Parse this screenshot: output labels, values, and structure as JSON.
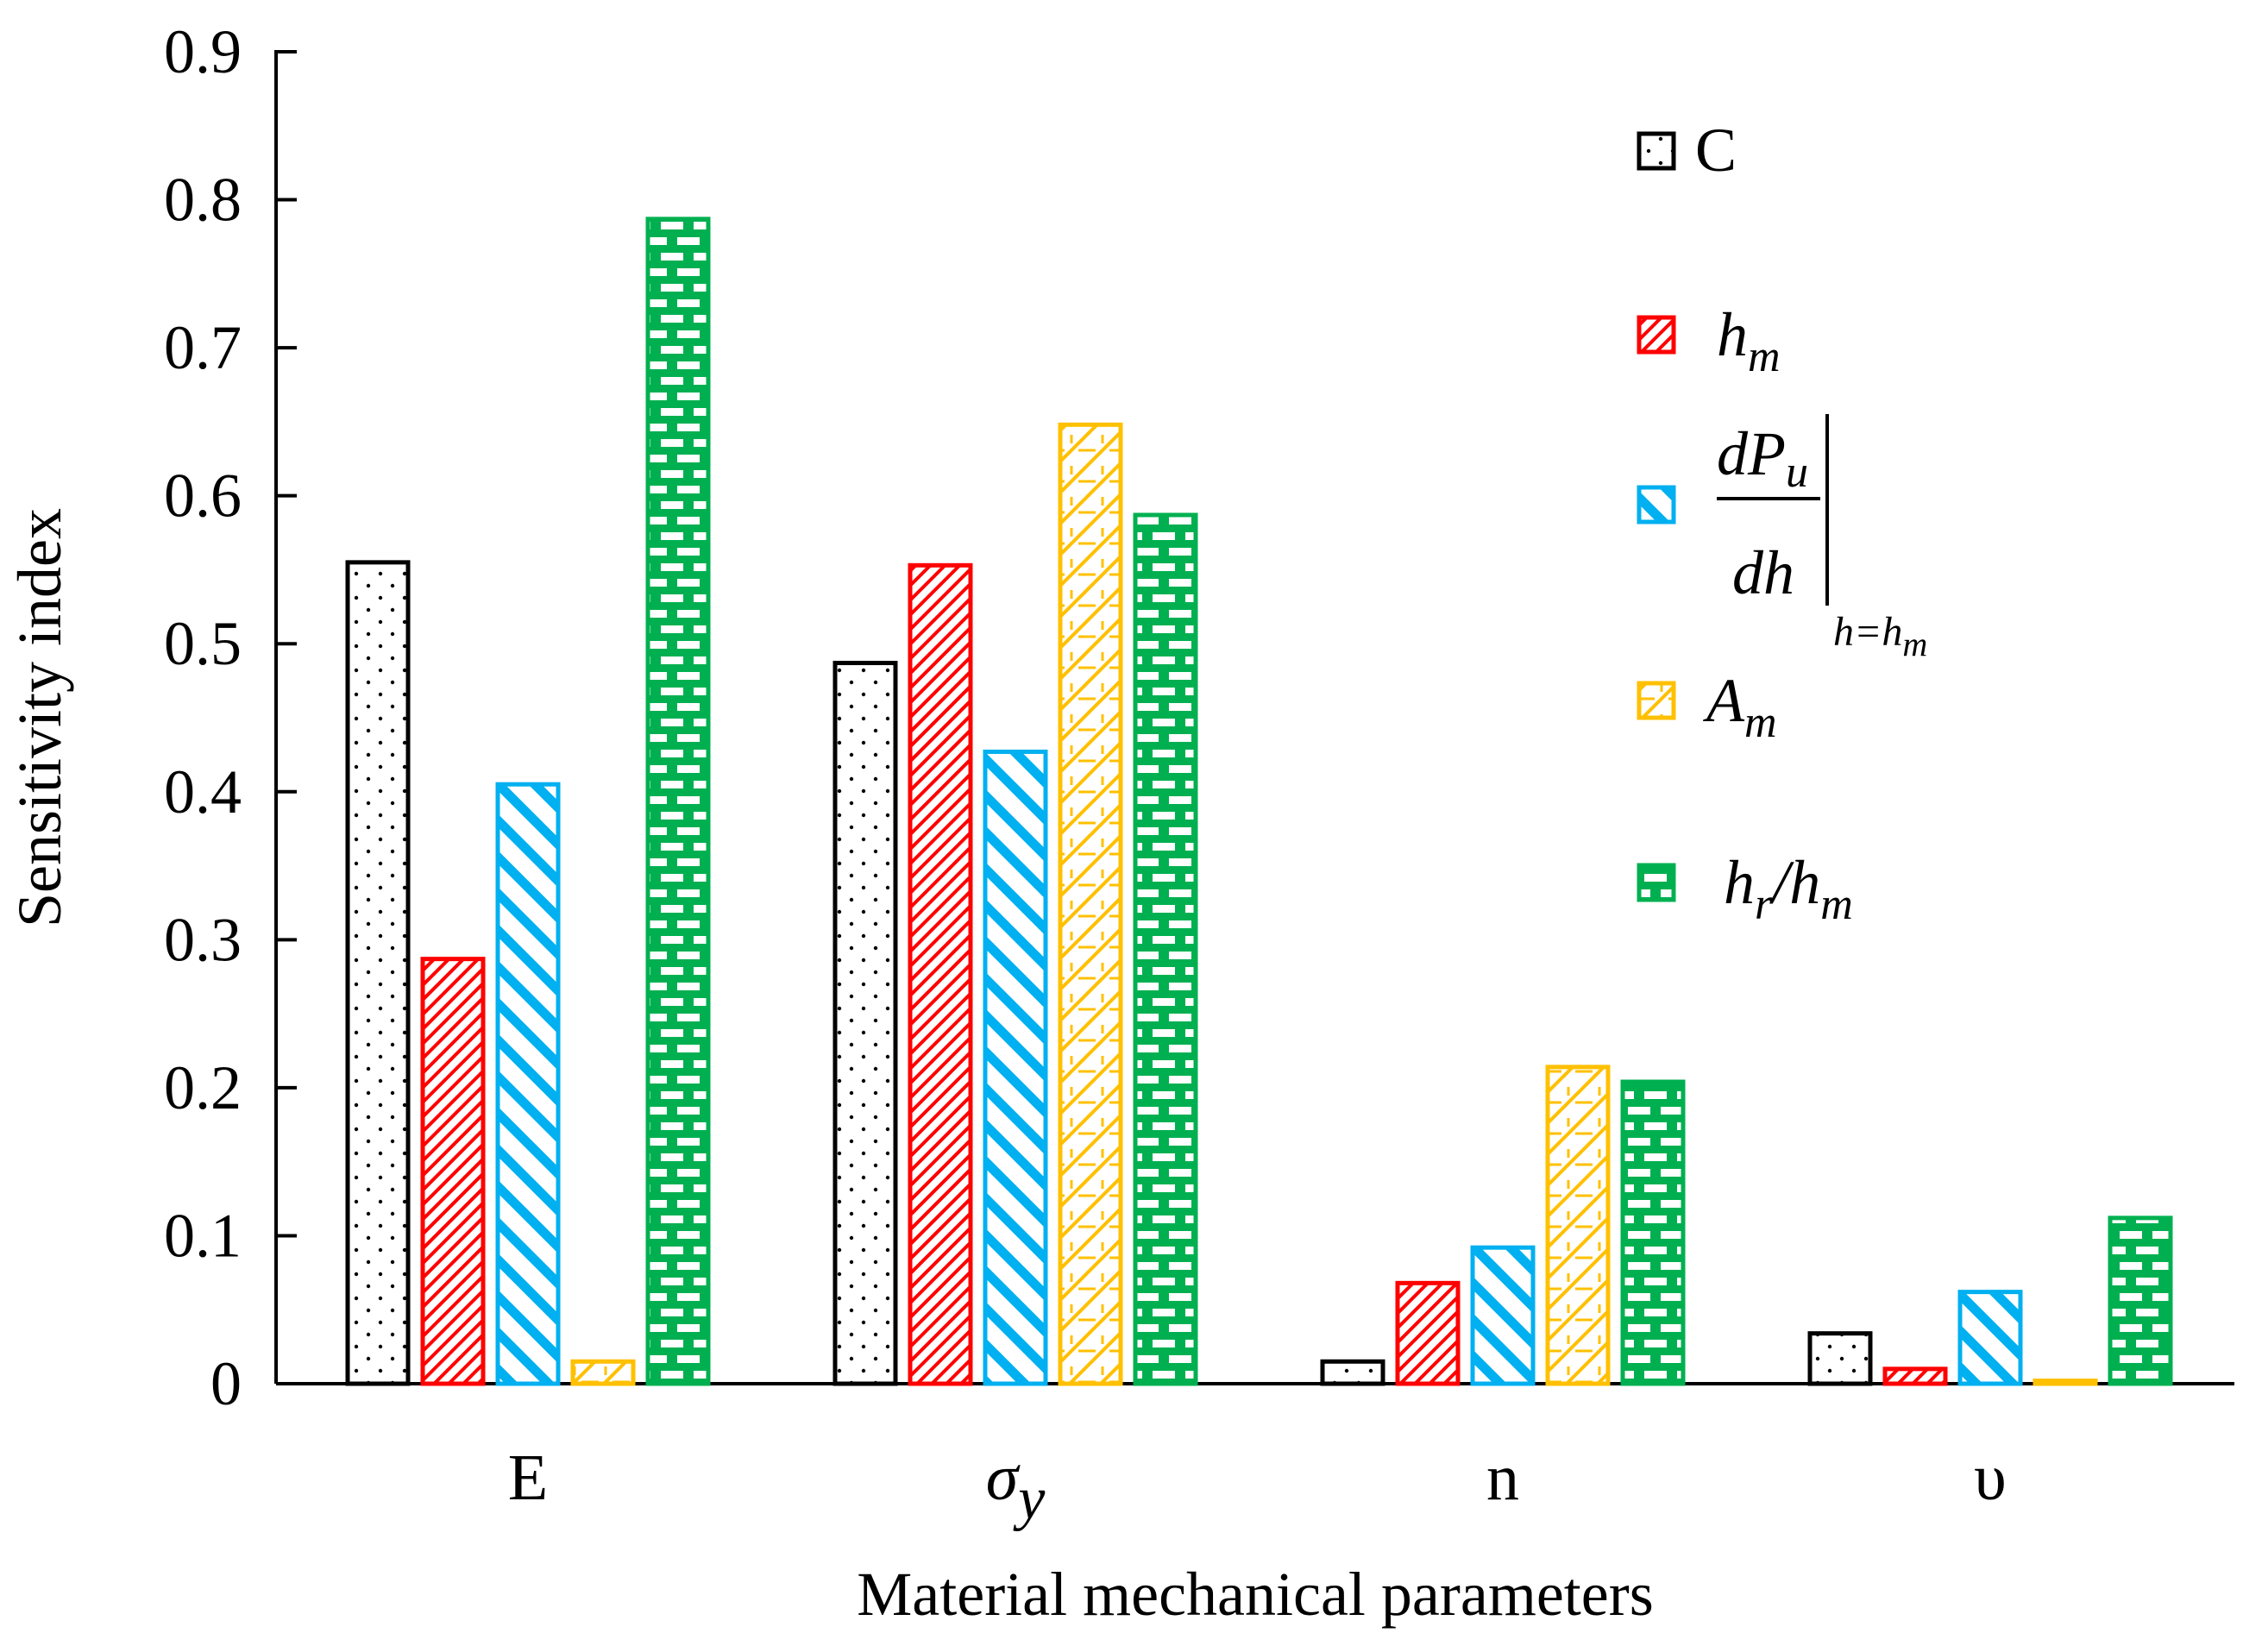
{
  "chart_data": {
    "type": "bar",
    "xlabel": "Material mechanical parameters",
    "ylabel": "Sensitivity index",
    "ylim": [
      0,
      0.9
    ],
    "yticks": [
      "0",
      "0.1",
      "0.2",
      "0.3",
      "0.4",
      "0.5",
      "0.6",
      "0.7",
      "0.8",
      "0.9"
    ],
    "categories": [
      "E",
      "σ",
      "n",
      "υ"
    ],
    "category_subscripts": [
      "",
      "y",
      "",
      ""
    ],
    "legend_position": "top-right",
    "series": [
      {
        "name": "C",
        "color": "#000000",
        "pattern": "dots",
        "values": [
          0.555,
          0.487,
          0.015,
          0.034
        ]
      },
      {
        "name": "h",
        "sub": "m",
        "color": "#ff0000",
        "pattern": "fine-diagonal",
        "values": [
          0.287,
          0.553,
          0.068,
          0.01
        ]
      },
      {
        "name": "dPu/dh|h=hm",
        "color": "#00b0f0",
        "pattern": "wide-diagonal",
        "values": [
          0.405,
          0.427,
          0.092,
          0.062
        ]
      },
      {
        "name": "A",
        "sub": "m",
        "color": "#ffc000",
        "pattern": "zigzag",
        "values": [
          0.015,
          0.648,
          0.214,
          0.002
        ]
      },
      {
        "name": "h",
        "sub": "r",
        "name2": "/h",
        "sub2": "m",
        "color": "#00b050",
        "pattern": "brick",
        "values": [
          0.787,
          0.587,
          0.204,
          0.112
        ]
      }
    ],
    "legend_formula": {
      "num": "dP",
      "num_sub": "u",
      "den": "dh",
      "cond_left": "h",
      "cond_eq": "=",
      "cond_right": "h",
      "cond_right_sub": "m"
    }
  }
}
